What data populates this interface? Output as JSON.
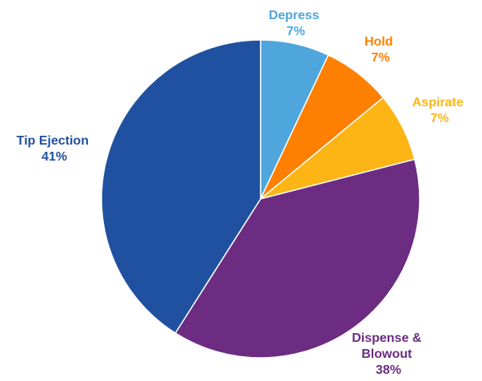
{
  "chart_data": {
    "type": "pie",
    "slices": [
      {
        "name": "Depress",
        "value": 7,
        "label": "7%",
        "color": "#4EA6DC"
      },
      {
        "name": "Hold",
        "value": 7,
        "label": "7%",
        "color": "#FF7F00"
      },
      {
        "name": "Aspirate",
        "value": 7,
        "label": "7%",
        "color": "#FDB515"
      },
      {
        "name": "Dispense &",
        "name_line2": "Blowout",
        "value": 38,
        "label": "38%",
        "color": "#6B2C82"
      },
      {
        "name": "Tip Ejection",
        "value": 41,
        "label": "41%",
        "color": "#2051A0"
      }
    ],
    "start_angle_deg": 0,
    "direction": "clockwise",
    "legend": "none"
  }
}
